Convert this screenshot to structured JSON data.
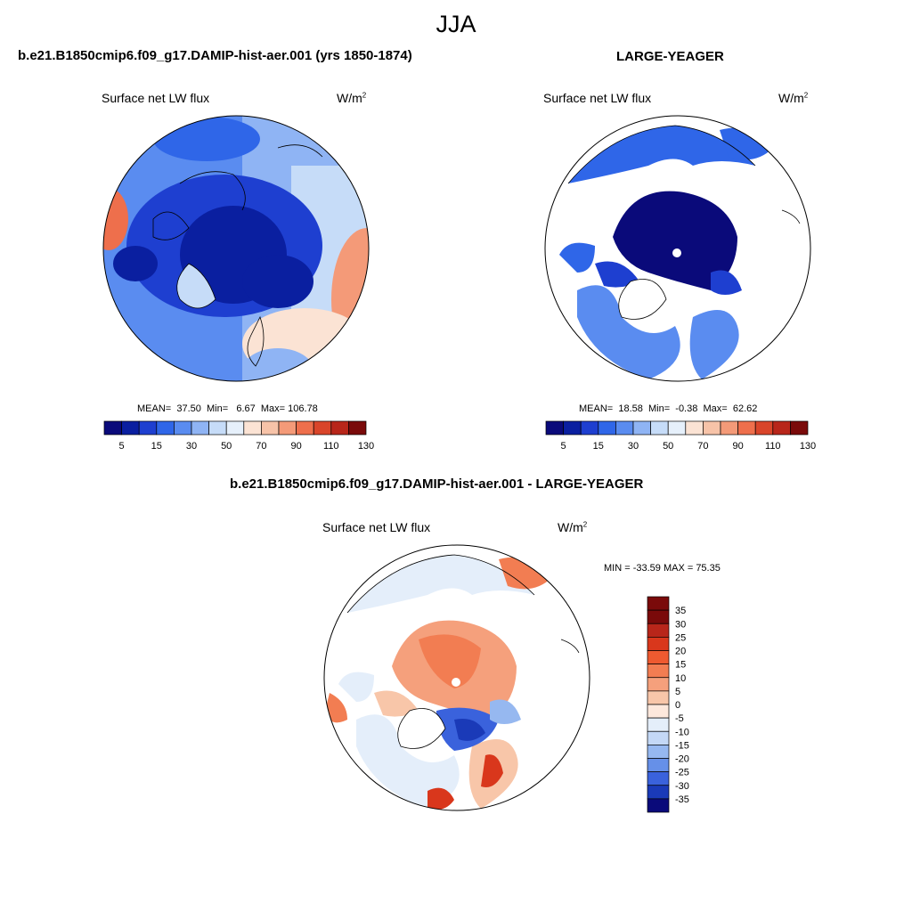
{
  "page_title": "JJA",
  "panels": [
    {
      "title": "b.e21.B1850cmip6.f09_g17.DAMIP-hist-aer.001 (yrs 1850-1874)",
      "variable": "Surface net LW flux",
      "units_base": "W/m",
      "units_exp": "2",
      "mean_label": "MEAN=",
      "mean": "37.50",
      "min_label": "Min=",
      "min": "6.67",
      "max_label": "Max=",
      "max": "106.78",
      "colorbar_ticks": [
        "5",
        "15",
        "30",
        "50",
        "70",
        "90",
        "110",
        "130"
      ]
    },
    {
      "title": "LARGE-YEAGER",
      "variable": "Surface net LW flux",
      "units_base": "W/m",
      "units_exp": "2",
      "mean_label": "MEAN=",
      "mean": "18.58",
      "min_label": "Min=",
      "min": "-0.38",
      "max_label": "Max=",
      "max": "62.62",
      "colorbar_ticks": [
        "5",
        "15",
        "30",
        "50",
        "70",
        "90",
        "110",
        "130"
      ]
    },
    {
      "title": "b.e21.B1850cmip6.f09_g17.DAMIP-hist-aer.001 - LARGE-YEAGER",
      "variable": "Surface net LW flux",
      "units_base": "W/m",
      "units_exp": "2",
      "minmax_text": "MIN = -33.59 MAX =  75.35",
      "colorbar_ticks": [
        "35",
        "30",
        "25",
        "20",
        "15",
        "10",
        "5",
        "0",
        "-5",
        "-10",
        "-15",
        "-20",
        "-25",
        "-30",
        "-35"
      ]
    }
  ],
  "colors": {
    "abs_scale": [
      "#0a0a7a",
      "#0a1fa0",
      "#1e3fd0",
      "#2f66e8",
      "#5a8cf0",
      "#8fb4f4",
      "#c6dcf8",
      "#e6f0fb",
      "#fbe3d4",
      "#f7c3a8",
      "#f49a78",
      "#ee6f4c",
      "#d9452a",
      "#b8261a",
      "#7a0a0a"
    ],
    "diff_scale": [
      "#7a0a0a",
      "#b8261a",
      "#d9371c",
      "#ee5a30",
      "#f27d52",
      "#f5a07c",
      "#f8c6a9",
      "#fde8dc",
      "#e4eefa",
      "#c4d8f6",
      "#96b8f0",
      "#6690e8",
      "#3a62dc",
      "#1a3ab8",
      "#0a0a7a"
    ]
  }
}
